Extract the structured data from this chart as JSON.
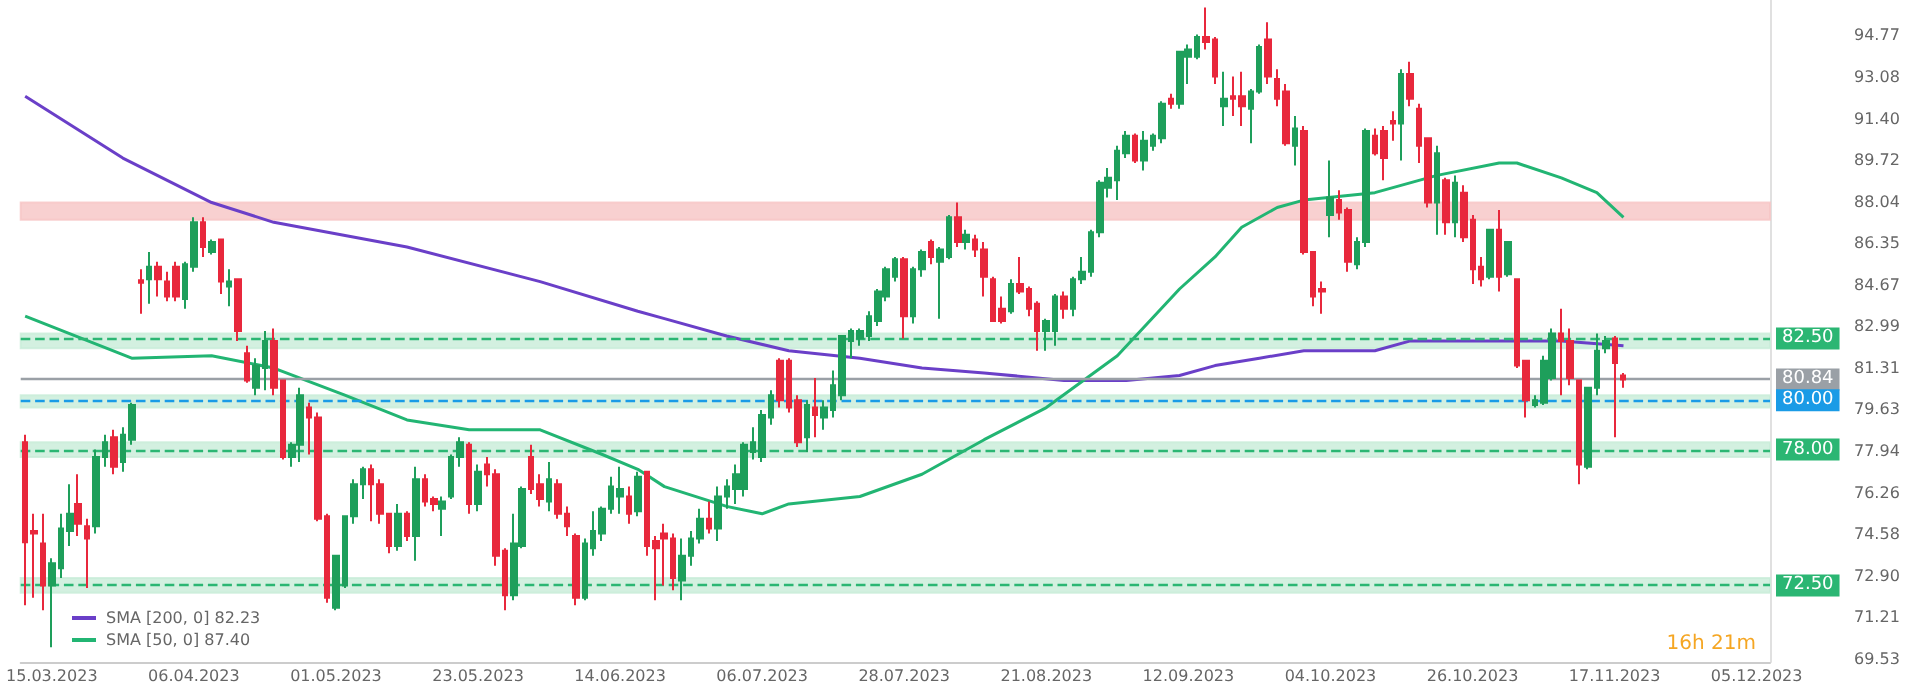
{
  "chart_data": {
    "type": "candlestick",
    "categories": [
      null,
      null,
      null,
      "15.03.2023",
      null,
      null,
      null,
      null,
      null,
      null,
      null,
      null,
      null,
      null,
      null,
      null,
      null,
      null,
      null,
      "06.04.2023",
      null,
      null,
      null,
      null,
      null,
      null,
      null,
      null,
      null,
      null,
      null,
      null,
      null,
      null,
      null,
      "01.05.2023",
      null,
      null,
      null,
      null,
      null,
      null,
      null,
      null,
      null,
      null,
      null,
      null,
      null,
      null,
      null,
      "23.05.2023",
      null,
      null,
      null,
      null,
      null,
      null,
      null,
      null,
      null,
      null,
      null,
      null,
      null,
      null,
      null,
      "14.06.2023",
      null,
      null,
      null,
      null,
      null,
      null,
      null,
      null,
      null,
      null,
      null,
      null,
      null,
      null,
      null,
      "06.07.2023",
      null,
      null,
      null,
      null,
      null,
      null,
      null,
      null,
      null,
      null,
      null,
      null,
      null,
      null,
      null,
      "28.07.2023",
      null,
      null,
      null,
      null,
      null,
      null,
      null,
      null,
      null,
      null,
      null,
      null,
      null,
      null,
      null,
      "21.08.2023",
      null,
      null,
      null,
      null,
      null,
      null,
      null,
      null,
      null,
      null,
      null,
      null,
      null,
      null,
      null,
      "12.09.2023",
      null,
      null,
      null,
      null,
      null,
      null,
      null,
      null,
      null,
      null,
      null,
      null,
      null,
      null,
      null,
      "04.10.2023",
      null,
      null,
      null,
      null,
      null,
      null,
      null,
      null,
      null,
      null,
      null,
      null,
      null,
      null,
      null,
      "26.10.2023",
      null,
      null,
      null,
      null,
      null,
      null,
      null,
      null,
      null,
      null,
      null,
      null,
      null,
      null,
      null,
      "17.11.2023",
      null,
      null,
      null,
      null,
      null,
      null,
      null,
      null,
      null,
      null,
      null,
      null,
      null,
      null,
      null,
      "05.12.2023",
      null
    ],
    "ohlc": [
      [
        78.3,
        78.6,
        71.7,
        74.25
      ],
      [
        74.7,
        75.4,
        72.0,
        74.6
      ],
      [
        74.2,
        75.4,
        71.5,
        72.5
      ],
      [
        72.5,
        73.6,
        70.0,
        73.4
      ],
      [
        73.2,
        75.4,
        72.8,
        74.8
      ],
      [
        74.7,
        76.6,
        74.1,
        75.4
      ],
      [
        75.8,
        77.0,
        74.5,
        75.0
      ],
      [
        74.9,
        75.2,
        72.4,
        74.4
      ],
      [
        74.9,
        78.0,
        74.6,
        77.7
      ],
      [
        77.7,
        78.6,
        77.3,
        78.3
      ],
      [
        78.5,
        78.8,
        77.0,
        77.3
      ],
      [
        77.5,
        78.9,
        77.1,
        78.6
      ],
      [
        78.4,
        79.9,
        78.2,
        79.8
      ],
      [
        84.85,
        85.3,
        83.5,
        84.75
      ],
      [
        84.9,
        86.0,
        83.9,
        85.4
      ],
      [
        85.4,
        85.6,
        84.2,
        84.9
      ],
      [
        84.8,
        85.2,
        84.0,
        84.2
      ],
      [
        85.4,
        85.6,
        84.0,
        84.2
      ],
      [
        84.1,
        85.6,
        83.7,
        85.5
      ],
      [
        85.4,
        87.4,
        85.2,
        87.2
      ],
      [
        87.2,
        87.4,
        85.8,
        86.2
      ],
      [
        86.0,
        86.5,
        85.9,
        86.4
      ],
      [
        86.5,
        86.5,
        84.3,
        84.8
      ],
      [
        84.6,
        85.3,
        83.8,
        84.8
      ],
      [
        84.9,
        84.9,
        82.4,
        82.8
      ],
      [
        81.9,
        82.2,
        80.7,
        80.8
      ],
      [
        80.5,
        81.7,
        80.2,
        81.4
      ],
      [
        81.3,
        82.8,
        80.4,
        82.4
      ],
      [
        82.4,
        82.9,
        80.2,
        80.5
      ],
      [
        80.8,
        80.8,
        77.6,
        77.7
      ],
      [
        77.7,
        78.3,
        77.3,
        78.2
      ],
      [
        78.2,
        80.5,
        77.5,
        80.2
      ],
      [
        79.7,
        79.9,
        77.8,
        79.3
      ],
      [
        79.3,
        79.5,
        75.1,
        75.2
      ],
      [
        75.3,
        75.4,
        71.8,
        72.0
      ],
      [
        71.6,
        73.7,
        71.5,
        73.7
      ],
      [
        72.5,
        75.3,
        72.4,
        75.3
      ],
      [
        75.3,
        76.8,
        75.0,
        76.6
      ],
      [
        76.6,
        77.3,
        76.0,
        77.2
      ],
      [
        77.2,
        77.4,
        75.1,
        76.6
      ],
      [
        76.6,
        76.8,
        75.0,
        75.4
      ],
      [
        75.4,
        75.4,
        73.8,
        74.1
      ],
      [
        74.1,
        75.8,
        73.9,
        75.4
      ],
      [
        75.4,
        75.5,
        74.3,
        74.5
      ],
      [
        74.5,
        77.3,
        73.5,
        76.8
      ],
      [
        76.8,
        77.0,
        75.7,
        75.9
      ],
      [
        76.0,
        76.1,
        75.5,
        75.8
      ],
      [
        75.6,
        76.1,
        74.5,
        75.9
      ],
      [
        76.1,
        77.8,
        76.0,
        77.7
      ],
      [
        77.7,
        78.5,
        77.3,
        78.3
      ],
      [
        78.2,
        78.3,
        75.4,
        75.8
      ],
      [
        75.8,
        77.4,
        75.5,
        77.1
      ],
      [
        77.4,
        77.7,
        76.5,
        77.0
      ],
      [
        77.0,
        77.2,
        73.3,
        73.7
      ],
      [
        73.9,
        74.0,
        71.5,
        72.1
      ],
      [
        72.1,
        75.4,
        71.9,
        74.2
      ],
      [
        74.1,
        76.5,
        74.0,
        76.4
      ],
      [
        77.7,
        78.2,
        76.2,
        76.4
      ],
      [
        76.6,
        77.0,
        75.7,
        76.0
      ],
      [
        75.9,
        77.5,
        75.5,
        76.8
      ],
      [
        76.6,
        76.8,
        75.2,
        75.4
      ],
      [
        75.4,
        75.7,
        74.5,
        74.9
      ],
      [
        74.5,
        74.6,
        71.7,
        72.0
      ],
      [
        72.0,
        74.4,
        71.9,
        74.2
      ],
      [
        74.0,
        75.5,
        73.7,
        74.7
      ],
      [
        74.6,
        75.7,
        74.3,
        75.6
      ],
      [
        75.6,
        76.9,
        75.4,
        76.5
      ],
      [
        76.1,
        77.3,
        75.4,
        76.4
      ],
      [
        76.1,
        76.5,
        75.0,
        75.4
      ],
      [
        75.5,
        77.1,
        75.3,
        76.9
      ],
      [
        77.1,
        77.1,
        73.7,
        74.1
      ],
      [
        74.3,
        74.5,
        71.9,
        74.0
      ],
      [
        74.6,
        75.0,
        72.5,
        74.4
      ],
      [
        74.4,
        74.6,
        72.3,
        72.8
      ],
      [
        72.7,
        74.4,
        71.9,
        73.7
      ],
      [
        73.7,
        74.7,
        73.3,
        74.4
      ],
      [
        74.4,
        75.6,
        74.2,
        75.2
      ],
      [
        75.2,
        75.9,
        74.6,
        74.8
      ],
      [
        74.8,
        76.5,
        74.3,
        76.1
      ],
      [
        76.1,
        76.8,
        75.6,
        76.5
      ],
      [
        76.4,
        77.4,
        75.8,
        77.0
      ],
      [
        76.4,
        78.3,
        76.1,
        78.2
      ],
      [
        77.9,
        78.9,
        77.6,
        78.3
      ],
      [
        77.7,
        79.6,
        77.5,
        79.4
      ],
      [
        79.3,
        80.4,
        79.0,
        80.2
      ],
      [
        81.6,
        81.7,
        79.7,
        80.0
      ],
      [
        81.6,
        81.7,
        79.5,
        79.7
      ],
      [
        80.0,
        80.2,
        78.1,
        78.3
      ],
      [
        78.5,
        80.0,
        77.9,
        79.8
      ],
      [
        79.7,
        80.9,
        78.5,
        79.4
      ],
      [
        79.3,
        80.0,
        78.8,
        79.7
      ],
      [
        79.6,
        81.2,
        79.3,
        80.6
      ],
      [
        80.2,
        82.6,
        80.0,
        82.6
      ],
      [
        82.4,
        82.9,
        81.7,
        82.8
      ],
      [
        82.5,
        82.9,
        82.2,
        82.8
      ],
      [
        82.6,
        83.6,
        82.4,
        83.4
      ],
      [
        83.2,
        84.5,
        83.0,
        84.4
      ],
      [
        84.2,
        85.4,
        84.0,
        85.3
      ],
      [
        85.0,
        85.8,
        84.8,
        85.7
      ],
      [
        85.7,
        85.8,
        82.5,
        83.4
      ],
      [
        83.4,
        85.4,
        83.1,
        85.3
      ],
      [
        85.3,
        86.1,
        85.0,
        86.0
      ],
      [
        86.4,
        86.5,
        85.5,
        85.8
      ],
      [
        85.6,
        86.2,
        83.3,
        86.1
      ],
      [
        85.8,
        87.5,
        85.7,
        87.4
      ],
      [
        87.4,
        88.0,
        86.2,
        86.4
      ],
      [
        86.4,
        86.9,
        86.1,
        86.7
      ],
      [
        86.5,
        86.7,
        85.8,
        86.1
      ],
      [
        86.1,
        86.4,
        84.2,
        85.0
      ],
      [
        84.9,
        85.0,
        83.2,
        83.2
      ],
      [
        83.7,
        84.2,
        83.1,
        83.2
      ],
      [
        83.6,
        84.9,
        83.5,
        84.7
      ],
      [
        84.7,
        85.8,
        84.3,
        84.4
      ],
      [
        84.5,
        84.6,
        83.4,
        83.7
      ],
      [
        83.9,
        84.0,
        82.0,
        82.8
      ],
      [
        82.8,
        83.3,
        82.0,
        83.2
      ],
      [
        82.8,
        84.3,
        82.2,
        84.2
      ],
      [
        84.2,
        84.4,
        83.3,
        83.7
      ],
      [
        83.7,
        85.0,
        83.4,
        84.9
      ],
      [
        84.9,
        85.8,
        84.7,
        85.2
      ],
      [
        85.2,
        86.9,
        85.0,
        86.8
      ],
      [
        86.8,
        88.9,
        86.6,
        88.8
      ],
      [
        88.6,
        89.4,
        88.2,
        89.0
      ],
      [
        88.9,
        90.3,
        88.1,
        90.1
      ],
      [
        90.0,
        90.9,
        89.8,
        90.7
      ],
      [
        90.7,
        90.8,
        89.6,
        89.7
      ],
      [
        89.7,
        90.9,
        89.3,
        90.5
      ],
      [
        90.3,
        90.8,
        90.1,
        90.7
      ],
      [
        90.6,
        92.1,
        90.4,
        92.0
      ],
      [
        92.2,
        92.4,
        91.8,
        92.0
      ],
      [
        92.0,
        94.1,
        91.8,
        94.1
      ],
      [
        93.9,
        94.4,
        92.8,
        94.2
      ],
      [
        93.9,
        94.8,
        93.8,
        94.7
      ],
      [
        94.7,
        95.9,
        94.2,
        94.5
      ],
      [
        94.6,
        94.7,
        92.8,
        93.1
      ],
      [
        91.9,
        93.3,
        91.1,
        92.2
      ],
      [
        92.3,
        93.1,
        91.5,
        92.2
      ],
      [
        92.3,
        93.3,
        91.1,
        91.9
      ],
      [
        91.8,
        92.6,
        90.4,
        92.5
      ],
      [
        92.5,
        94.4,
        92.4,
        94.3
      ],
      [
        94.6,
        95.3,
        92.8,
        93.1
      ],
      [
        93.0,
        93.4,
        91.9,
        92.2
      ],
      [
        92.5,
        92.8,
        90.3,
        90.4
      ],
      [
        90.3,
        91.5,
        89.5,
        91.0
      ],
      [
        90.9,
        91.1,
        85.9,
        86.0
      ],
      [
        86.0,
        86.0,
        83.8,
        84.2
      ],
      [
        84.5,
        84.8,
        83.5,
        84.4
      ],
      [
        87.5,
        89.7,
        86.6,
        88.2
      ],
      [
        88.1,
        88.5,
        87.3,
        87.6
      ],
      [
        87.7,
        87.8,
        85.2,
        85.6
      ],
      [
        85.5,
        86.6,
        85.3,
        86.4
      ],
      [
        86.4,
        91.0,
        86.2,
        90.9
      ],
      [
        90.7,
        91.0,
        89.9,
        90.0
      ],
      [
        90.9,
        91.1,
        88.9,
        89.8
      ],
      [
        91.3,
        91.7,
        90.5,
        91.2
      ],
      [
        91.2,
        93.4,
        89.7,
        93.2
      ],
      [
        93.2,
        93.7,
        91.9,
        92.2
      ],
      [
        91.8,
        92.0,
        89.6,
        90.3
      ],
      [
        90.6,
        90.6,
        87.8,
        88.0
      ],
      [
        88.0,
        90.3,
        86.7,
        90.0
      ],
      [
        88.9,
        89.0,
        86.7,
        87.2
      ],
      [
        87.2,
        89.1,
        86.6,
        88.8
      ],
      [
        88.4,
        88.7,
        86.4,
        86.6
      ],
      [
        87.3,
        87.5,
        84.7,
        85.3
      ],
      [
        85.4,
        85.8,
        84.6,
        84.9
      ],
      [
        85.0,
        86.9,
        84.9,
        86.9
      ],
      [
        86.9,
        87.7,
        84.4,
        85.0
      ],
      [
        85.1,
        86.4,
        85.0,
        86.4
      ],
      [
        84.9,
        84.9,
        81.3,
        81.4
      ],
      [
        81.6,
        81.6,
        79.3,
        80.0
      ],
      [
        79.8,
        80.2,
        79.7,
        80.0
      ],
      [
        79.9,
        81.8,
        79.8,
        81.6
      ],
      [
        80.9,
        82.9,
        80.8,
        82.7
      ],
      [
        82.7,
        83.7,
        80.2,
        82.4
      ],
      [
        82.4,
        82.9,
        80.6,
        80.9
      ],
      [
        80.8,
        80.8,
        76.6,
        77.4
      ],
      [
        77.3,
        80.5,
        77.2,
        80.5
      ],
      [
        80.5,
        82.7,
        80.2,
        82.0
      ],
      [
        82.1,
        82.6,
        81.9,
        82.4
      ],
      [
        82.5,
        82.6,
        78.5,
        81.5
      ],
      [
        81.0,
        81.1,
        80.5,
        80.84
      ],
      null,
      null,
      null,
      null,
      null,
      null,
      null,
      null,
      null,
      null,
      null,
      null,
      null,
      null,
      null,
      null
    ],
    "series": [
      {
        "name": "SMA [200, 0] 82.23",
        "type": "line",
        "color": "#6a3fc8",
        "values": [
          92.3,
          null,
          null,
          null,
          null,
          null,
          null,
          null,
          null,
          null,
          null,
          89.8,
          null,
          null,
          null,
          null,
          null,
          null,
          null,
          null,
          null,
          88.0,
          null,
          null,
          null,
          null,
          null,
          null,
          87.2,
          null,
          null,
          null,
          null,
          null,
          null,
          null,
          null,
          null,
          null,
          null,
          null,
          null,
          null,
          86.2,
          null,
          null,
          null,
          null,
          null,
          null,
          null,
          null,
          null,
          null,
          null,
          null,
          null,
          null,
          84.8,
          null,
          null,
          null,
          null,
          null,
          null,
          null,
          null,
          null,
          null,
          83.6,
          null,
          null,
          83.3,
          null,
          null,
          null,
          null,
          null,
          null,
          82.6,
          null,
          null,
          null,
          null,
          null,
          null,
          82.0,
          null,
          null,
          null,
          null,
          null,
          null,
          null,
          81.7,
          null,
          null,
          null,
          null,
          null,
          null,
          81.3,
          null,
          null,
          null,
          null,
          null,
          null,
          81.1,
          null,
          null,
          null,
          null,
          null,
          null,
          null,
          null,
          80.8,
          null,
          null,
          null,
          null,
          null,
          null,
          80.8,
          null,
          null,
          null,
          null,
          null,
          81.0,
          null,
          null,
          null,
          81.4,
          null,
          null,
          null,
          null,
          81.7,
          null,
          null,
          null,
          null,
          82.0,
          null,
          null,
          null,
          null,
          null,
          null,
          null,
          82.0,
          null,
          null,
          null,
          82.4,
          null,
          null,
          null,
          null,
          null,
          null,
          null,
          null,
          null,
          82.4,
          null,
          null,
          null,
          null,
          null,
          null,
          82.4,
          null,
          null,
          null,
          null,
          null,
          null,
          82.2,
          null,
          null,
          null,
          null,
          null,
          null,
          null,
          null,
          null,
          null,
          null,
          null,
          null,
          null,
          null,
          null
        ]
      },
      {
        "name": "SMA [50, 0] 87.40",
        "type": "line",
        "color": "#22b573",
        "values": [
          83.4,
          null,
          null,
          null,
          null,
          null,
          null,
          null,
          null,
          null,
          null,
          null,
          81.7,
          null,
          null,
          null,
          null,
          null,
          null,
          null,
          null,
          81.8,
          null,
          null,
          null,
          null,
          null,
          null,
          81.3,
          null,
          null,
          null,
          null,
          null,
          null,
          null,
          80.2,
          null,
          null,
          null,
          null,
          null,
          null,
          79.2,
          null,
          null,
          null,
          null,
          null,
          null,
          78.8,
          null,
          null,
          null,
          null,
          null,
          null,
          null,
          78.8,
          null,
          null,
          null,
          null,
          null,
          null,
          77.8,
          null,
          null,
          null,
          77.2,
          null,
          null,
          76.5,
          null,
          null,
          null,
          null,
          null,
          null,
          75.7,
          null,
          null,
          null,
          75.4,
          null,
          null,
          75.8,
          null,
          null,
          null,
          null,
          null,
          null,
          null,
          76.1,
          null,
          null,
          null,
          null,
          null,
          null,
          77.0,
          null,
          null,
          null,
          null,
          null,
          null,
          78.4,
          null,
          null,
          null,
          null,
          null,
          null,
          79.7,
          null,
          null,
          null,
          null,
          null,
          null,
          null,
          81.8,
          null,
          null,
          null,
          null,
          null,
          null,
          84.5,
          null,
          null,
          null,
          85.8,
          null,
          null,
          87.0,
          null,
          null,
          null,
          87.8,
          null,
          null,
          88.1,
          null,
          null,
          null,
          null,
          null,
          null,
          null,
          88.4,
          null,
          null,
          null,
          null,
          null,
          null,
          89.1,
          null,
          null,
          null,
          null,
          null,
          null,
          89.6,
          null,
          89.6,
          null,
          null,
          null,
          null,
          89.0,
          null,
          null,
          null,
          88.4,
          null,
          null,
          87.4,
          null,
          null,
          null,
          null,
          null,
          null,
          null,
          null,
          null,
          null,
          null,
          null,
          null,
          null,
          null,
          null
        ]
      }
    ],
    "ylim": [
      69.4,
      96.2
    ],
    "yticks": [
      94.77,
      93.08,
      {
        "value": 91.4,
        "label": "91.40"
      },
      89.72,
      88.04,
      86.35,
      84.67,
      82.99,
      81.31,
      79.63,
      77.94,
      76.26,
      74.58,
      {
        "value": 72.9,
        "label": "72.90"
      },
      71.21,
      69.53
    ],
    "ref_lines": [
      {
        "axis": "y",
        "value": 82.5,
        "label": "82.50",
        "color": "#2bb673",
        "line_style": "dashed"
      },
      {
        "axis": "y",
        "value": 80.84,
        "label": "80.84",
        "color": "#9aa0a6",
        "line_style": "solid"
      },
      {
        "axis": "y",
        "value": 80,
        "label": "80.00",
        "color": "#1a9be6",
        "line_style": "dashed"
      },
      {
        "axis": "y",
        "value": 78,
        "label": "78.00",
        "color": "#2bb673",
        "line_style": "dashed"
      },
      {
        "axis": "y",
        "value": 72.5,
        "label": "72.50",
        "color": "#2bb673",
        "line_style": "dashed"
      }
    ],
    "bands": [
      {
        "axis": "y",
        "from": 87.3,
        "to": 88.0,
        "color": "#f6c4c4"
      },
      {
        "axis": "y",
        "from": 82.1,
        "to": 82.7,
        "color": "#c8ecd8"
      },
      {
        "axis": "y",
        "from": 79.7,
        "to": 80.2,
        "color": "#c8ecd8"
      },
      {
        "axis": "y",
        "from": 77.7,
        "to": 78.3,
        "color": "#c8ecd8"
      },
      {
        "axis": "y",
        "from": 72.2,
        "to": 72.8,
        "color": "#c8ecd8"
      }
    ],
    "annotations": [
      "16h 21m"
    ],
    "legend": "bottom left",
    "marker": "none",
    "grid": false
  }
}
